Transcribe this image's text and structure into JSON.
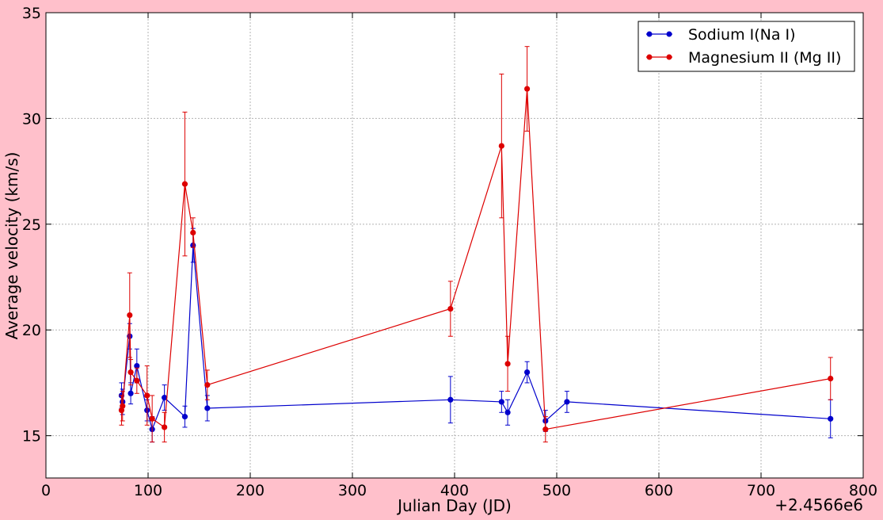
{
  "chart_data": {
    "type": "line",
    "title": "",
    "xlabel": "Julian Day (JD)",
    "ylabel": "Average velocity (km/s)",
    "x_offset_label": "+2.4566e6",
    "xlim": [
      0,
      800
    ],
    "ylim": [
      13,
      35
    ],
    "xticks": [
      0,
      100,
      200,
      300,
      400,
      500,
      600,
      700,
      800
    ],
    "yticks": [
      15,
      20,
      25,
      30,
      35
    ],
    "grid": true,
    "legend_position": "top-right",
    "series": [
      {
        "name": "Sodium I(Na I)",
        "color": "#0000cc",
        "x": [
          74,
          75,
          82,
          83,
          89,
          99,
          104,
          116,
          136,
          144,
          158,
          396,
          446,
          452,
          471,
          489,
          510,
          768
        ],
        "y": [
          16.9,
          16.6,
          19.7,
          17.0,
          18.3,
          16.2,
          15.3,
          16.8,
          15.9,
          24.0,
          16.3,
          16.7,
          16.6,
          16.1,
          18.0,
          15.7,
          16.6,
          15.8
        ],
        "err": [
          0.6,
          0.6,
          0.6,
          0.5,
          0.8,
          0.5,
          0.6,
          0.6,
          0.5,
          0.8,
          0.6,
          1.1,
          0.5,
          0.6,
          0.5,
          0.5,
          0.5,
          0.9
        ]
      },
      {
        "name": "Magnesium II (Mg II)",
        "color": "#dd0000",
        "x": [
          74,
          75,
          82,
          83,
          89,
          99,
          104,
          116,
          136,
          144,
          158,
          396,
          446,
          452,
          471,
          489,
          768
        ],
        "y": [
          16.2,
          16.4,
          20.7,
          18.0,
          17.6,
          16.9,
          15.8,
          15.4,
          26.9,
          24.6,
          17.4,
          21.0,
          28.7,
          18.4,
          31.4,
          15.3,
          17.7
        ],
        "err": [
          0.7,
          0.7,
          2.0,
          0.6,
          0.6,
          1.4,
          1.1,
          0.7,
          3.4,
          0.7,
          0.7,
          1.3,
          3.4,
          1.3,
          2.0,
          0.6,
          1.0
        ]
      }
    ]
  }
}
